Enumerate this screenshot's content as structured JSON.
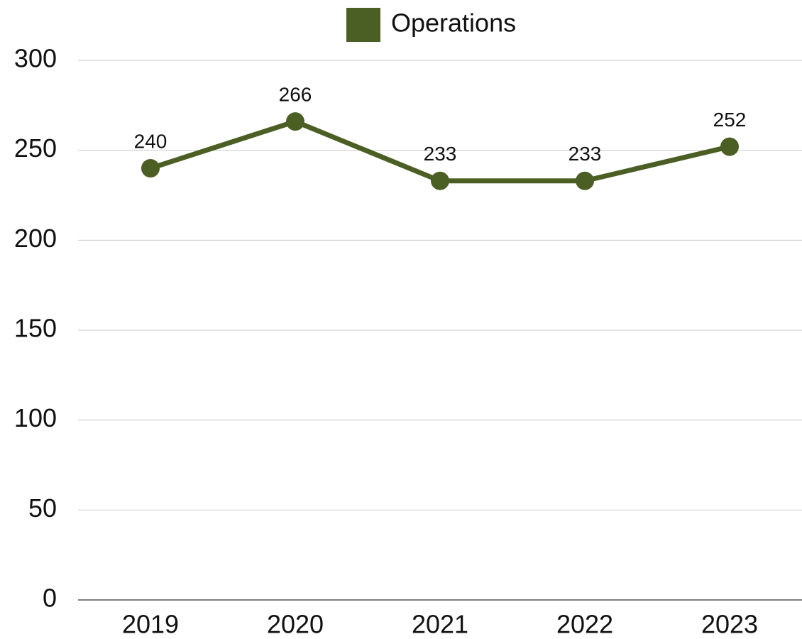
{
  "chart_data": {
    "type": "line",
    "categories": [
      "2019",
      "2020",
      "2021",
      "2022",
      "2023"
    ],
    "series": [
      {
        "name": "Operations",
        "color": "#4b5e24",
        "values": [
          240,
          266,
          233,
          233,
          252
        ]
      }
    ],
    "ylim": [
      0,
      300
    ],
    "yticks": [
      0,
      50,
      100,
      150,
      200,
      250,
      300
    ],
    "grid": true,
    "legend": "top",
    "data_labels": true
  }
}
